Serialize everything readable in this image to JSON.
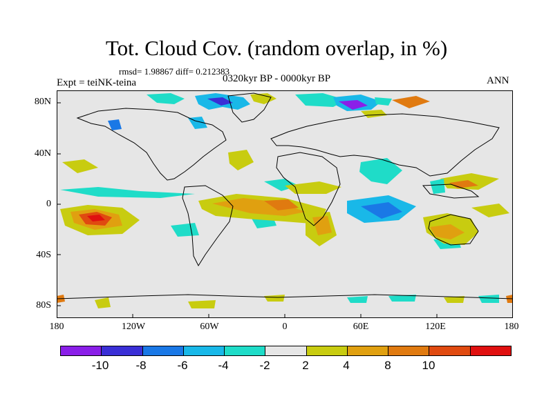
{
  "header": {
    "title": "Tot. Cloud Cov. (random overlap, in %)",
    "stats": "rmsd= 1.98867 diff= 0.212383",
    "experiment": "Expt = teiNK-teina",
    "period": "0320kyr BP - 0000kyr BP",
    "season": "ANN"
  },
  "axes": {
    "lat_labels": [
      "80N",
      "40N",
      "0",
      "40S",
      "80S"
    ],
    "lon_labels": [
      "180",
      "120W",
      "60W",
      "0",
      "60E",
      "120E",
      "180"
    ]
  },
  "colorbar": {
    "colors": [
      "#8a1fe8",
      "#3a2fd6",
      "#1a78e6",
      "#19b8e8",
      "#1fdcc8",
      "#e6e6e6",
      "#c8cc10",
      "#e0a010",
      "#e07a10",
      "#e04a10",
      "#e01010"
    ],
    "labels": [
      "-10",
      "-8",
      "-6",
      "-4",
      "-2",
      "2",
      "4",
      "8",
      "10"
    ],
    "background": "#e6e6e6"
  }
}
